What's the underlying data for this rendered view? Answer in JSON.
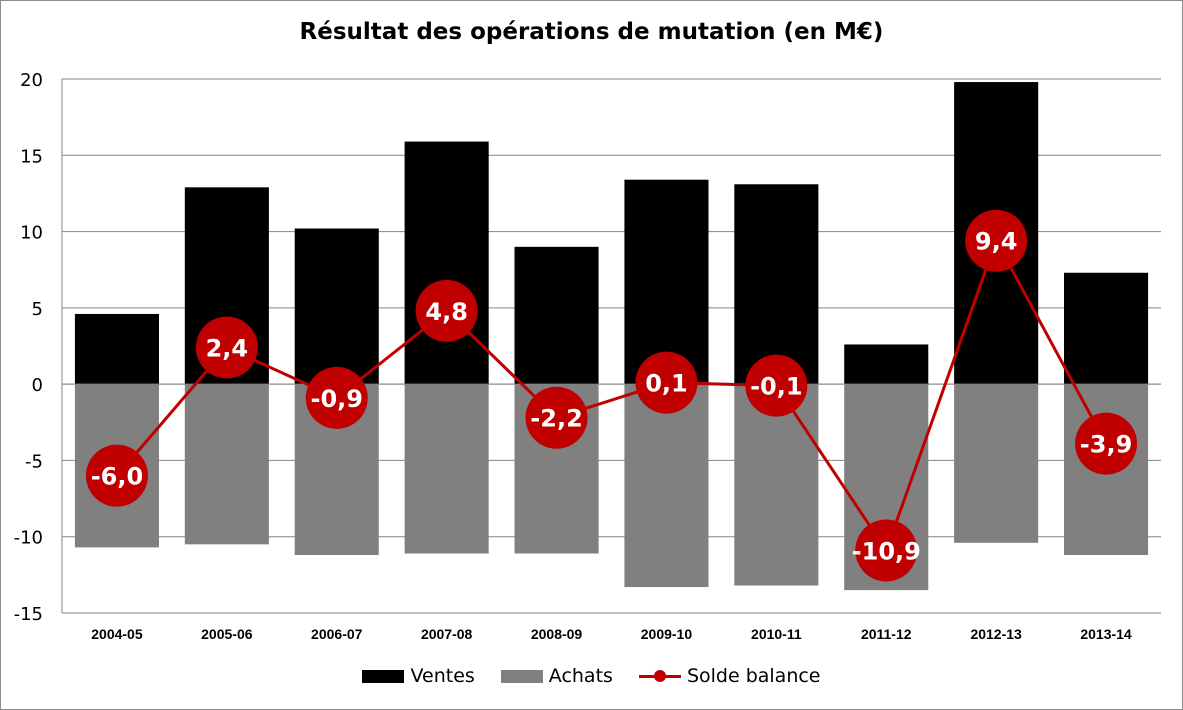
{
  "chart_data": {
    "type": "bar",
    "title": "Résultat des opérations de mutation (en M€)",
    "xlabel": "",
    "ylabel": "",
    "ylim": [
      -15,
      20
    ],
    "yticks": [
      20,
      15,
      10,
      5,
      0,
      -5,
      -10,
      -15
    ],
    "grid": true,
    "legend_position": "bottom",
    "categories": [
      "2004-05",
      "2005-06",
      "2006-07",
      "2007-08",
      "2008-09",
      "2009-10",
      "2010-11",
      "2011-12",
      "2012-13",
      "2013-14"
    ],
    "series": [
      {
        "name": "Ventes",
        "type": "bar",
        "color": "#000000",
        "values": [
          4.6,
          12.9,
          10.2,
          15.9,
          9.0,
          13.4,
          13.1,
          2.6,
          19.8,
          7.3
        ]
      },
      {
        "name": "Achats",
        "type": "bar",
        "color": "#808080",
        "values": [
          -10.7,
          -10.5,
          -11.2,
          -11.1,
          -11.1,
          -13.3,
          -13.2,
          -13.5,
          -10.4,
          -11.2
        ]
      },
      {
        "name": "Solde balance",
        "type": "line",
        "color": "#c00000",
        "values": [
          -6.0,
          2.4,
          -0.9,
          4.8,
          -2.2,
          0.1,
          -0.1,
          -10.9,
          9.4,
          -3.9
        ],
        "labels": [
          "-6,0",
          "2,4",
          "-0,9",
          "4,8",
          "-2,2",
          "0,1",
          "-0,1",
          "-10,9",
          "9,4",
          "-3,9"
        ]
      }
    ]
  }
}
